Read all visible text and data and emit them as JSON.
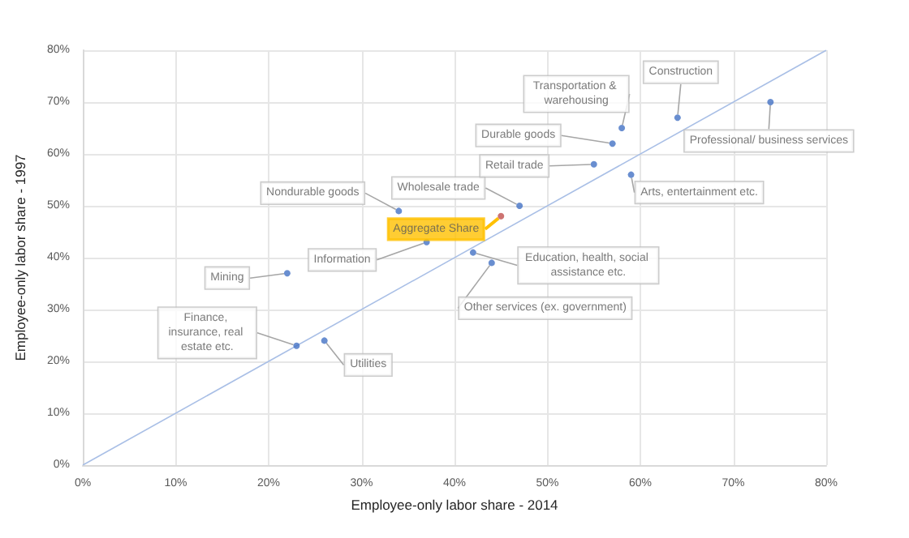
{
  "chart_data": {
    "type": "scatter",
    "xlabel": "Employee-only labor share - 2014",
    "ylabel": "Employee-only labor share - 1997",
    "xlim": [
      0,
      80
    ],
    "ylim": [
      0,
      80
    ],
    "xticks": [
      {
        "value": 0,
        "label": "0%"
      },
      {
        "value": 10,
        "label": "10%"
      },
      {
        "value": 20,
        "label": "20%"
      },
      {
        "value": 30,
        "label": "30%"
      },
      {
        "value": 40,
        "label": "40%"
      },
      {
        "value": 50,
        "label": "50%"
      },
      {
        "value": 60,
        "label": "60%"
      },
      {
        "value": 70,
        "label": "70%"
      },
      {
        "value": 80,
        "label": "80%"
      }
    ],
    "yticks": [
      {
        "value": 0,
        "label": "0%"
      },
      {
        "value": 10,
        "label": "10%"
      },
      {
        "value": 20,
        "label": "20%"
      },
      {
        "value": 30,
        "label": "30%"
      },
      {
        "value": 40,
        "label": "40%"
      },
      {
        "value": 50,
        "label": "50%"
      },
      {
        "value": 60,
        "label": "60%"
      },
      {
        "value": 70,
        "label": "70%"
      },
      {
        "value": 80,
        "label": "80%"
      }
    ],
    "grid": true,
    "marker": "circle",
    "series": [
      {
        "type": "line",
        "color": "#a9bfe6",
        "x": [
          0,
          80
        ],
        "values": [
          0,
          80
        ],
        "marker": "none"
      },
      {
        "color": "#4472c4",
        "x": [
          22,
          34,
          37,
          47,
          58,
          57,
          55,
          64,
          74,
          59,
          42,
          44,
          23,
          26
        ],
        "values": [
          37,
          49,
          43,
          50,
          65,
          62,
          58,
          67,
          70,
          56,
          41,
          39,
          23,
          24
        ]
      },
      {
        "color": "#c0504d",
        "x": [
          45
        ],
        "values": [
          48
        ]
      }
    ],
    "annotations": [
      {
        "text": "Mining",
        "x": 22,
        "y": 37
      },
      {
        "text": "Nondurable goods",
        "x": 34,
        "y": 49
      },
      {
        "text": "Information",
        "x": 37,
        "y": 43
      },
      {
        "text": "Aggregate Share",
        "x": 45,
        "y": 48
      },
      {
        "text": "Wholesale trade",
        "x": 47,
        "y": 50
      },
      {
        "text": "Transportation & warehousing",
        "x": 58,
        "y": 65
      },
      {
        "text": "Durable goods",
        "x": 57,
        "y": 62
      },
      {
        "text": "Retail trade",
        "x": 55,
        "y": 58
      },
      {
        "text": "Construction",
        "x": 64,
        "y": 67
      },
      {
        "text": "Professional/ business services",
        "x": 74,
        "y": 70
      },
      {
        "text": "Arts, entertainment etc.",
        "x": 59,
        "y": 56
      },
      {
        "text": "Education, health, social assistance etc.",
        "x": 42,
        "y": 41
      },
      {
        "text": "Other services (ex. government)",
        "x": 44,
        "y": 39
      },
      {
        "text": "Finance, insurance, real estate etc.",
        "x": 23,
        "y": 23
      },
      {
        "text": "Utilities",
        "x": 26,
        "y": 24
      }
    ]
  }
}
